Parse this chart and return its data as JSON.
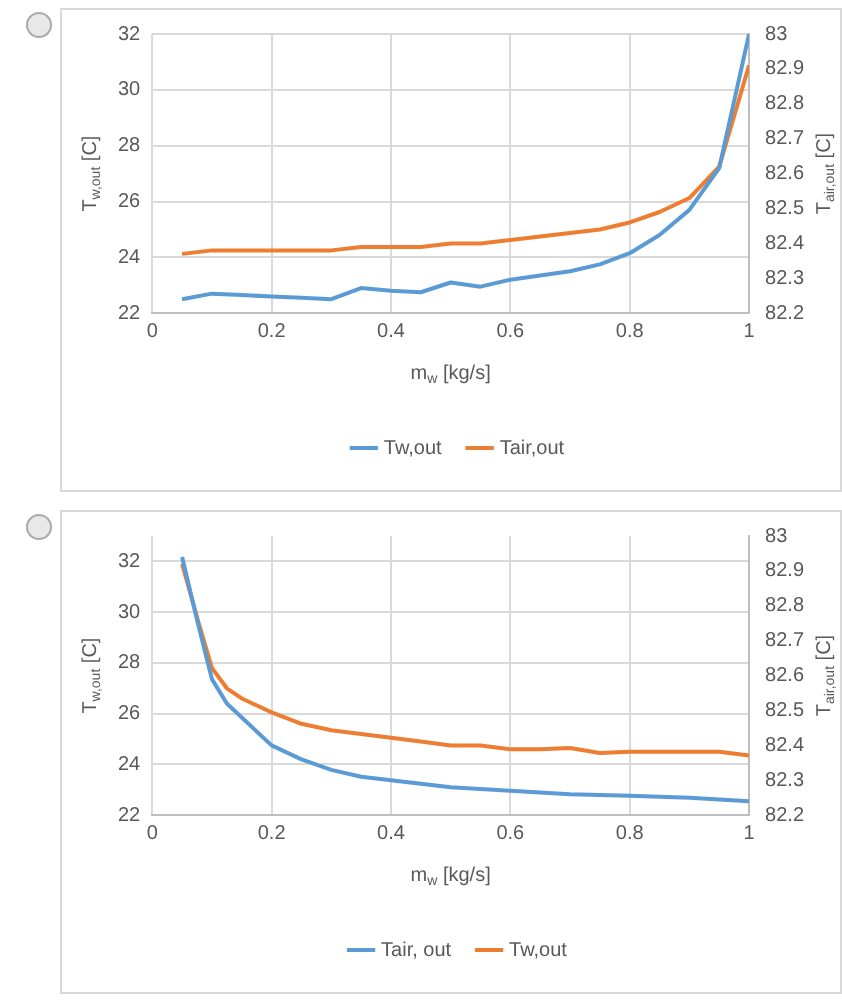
{
  "chart_data": [
    {
      "type": "line",
      "xlabel": "m$_{w}$ [kg/s]",
      "ylabel": "T$_{w,out}$ [C]",
      "y2label": "T$_{air,out}$ [C]",
      "xlim": [
        0,
        1
      ],
      "xticks": [
        0,
        0.2,
        0.4,
        0.6,
        0.8,
        1
      ],
      "ylim": [
        22,
        32
      ],
      "yticks": [
        22,
        24,
        26,
        28,
        30,
        32
      ],
      "y2lim": [
        82.2,
        83
      ],
      "y2ticks": [
        82.2,
        82.3,
        82.4,
        82.5,
        82.6,
        82.7,
        82.8,
        82.9,
        83
      ],
      "grid": true,
      "legend": "bottom",
      "x": [
        0.05,
        0.1,
        0.15,
        0.2,
        0.25,
        0.3,
        0.35,
        0.4,
        0.45,
        0.5,
        0.55,
        0.6,
        0.65,
        0.7,
        0.75,
        0.8,
        0.85,
        0.9,
        0.95,
        1
      ],
      "series": [
        {
          "name": "Tw,out",
          "color": "#5b9bd5",
          "values": [
            22.5,
            22.7,
            22.65,
            22.6,
            22.55,
            22.5,
            22.9,
            22.8,
            22.75,
            23.1,
            22.95,
            23.2,
            23.35,
            23.5,
            23.75,
            24.15,
            24.8,
            25.7,
            27.2,
            32
          ]
        },
        {
          "name": "Tair,out",
          "color": "#ed7d31",
          "axis": "y2",
          "values": [
            82.37,
            82.38,
            82.38,
            82.38,
            82.38,
            82.38,
            82.39,
            82.39,
            82.39,
            82.4,
            82.4,
            82.41,
            82.42,
            82.43,
            82.44,
            82.46,
            82.49,
            82.53,
            82.62,
            82.91
          ]
        }
      ]
    },
    {
      "type": "line",
      "xlabel": "m$_{w}$ [kg/s]",
      "ylabel": "T$_{w,out}$ [C]",
      "y2label": "T$_{air,out}$ [C]",
      "xlim": [
        0,
        1
      ],
      "xticks": [
        0,
        0.2,
        0.4,
        0.6,
        0.8,
        1
      ],
      "ylim": [
        22,
        33
      ],
      "yticks": [
        22,
        24,
        26,
        28,
        30,
        32
      ],
      "y2lim": [
        82.2,
        83
      ],
      "y2ticks": [
        82.2,
        82.3,
        82.4,
        82.5,
        82.6,
        82.7,
        82.8,
        82.9,
        83
      ],
      "grid": true,
      "legend": "bottom",
      "x": [
        0.05,
        0.075,
        0.1,
        0.125,
        0.15,
        0.2,
        0.25,
        0.3,
        0.35,
        0.4,
        0.45,
        0.5,
        0.55,
        0.6,
        0.65,
        0.7,
        0.75,
        0.8,
        0.85,
        0.9,
        0.95,
        1
      ],
      "series": [
        {
          "name": "Tair, out",
          "color": "#5b9bd5",
          "axis": "y2",
          "values": [
            82.94,
            82.76,
            82.59,
            82.52,
            82.48,
            82.4,
            82.36,
            82.33,
            82.31,
            82.3,
            82.29,
            82.28,
            82.275,
            82.27,
            82.265,
            82.26,
            82.258,
            82.256,
            82.253,
            82.25,
            82.245,
            82.24
          ]
        },
        {
          "name": "Tw,out",
          "color": "#ed7d31",
          "values": [
            31.9,
            29.8,
            27.8,
            27.0,
            26.6,
            26.05,
            25.6,
            25.35,
            25.2,
            25.05,
            24.9,
            24.75,
            24.75,
            24.6,
            24.6,
            24.65,
            24.45,
            24.5,
            24.5,
            24.5,
            24.5,
            24.35
          ]
        }
      ]
    }
  ]
}
